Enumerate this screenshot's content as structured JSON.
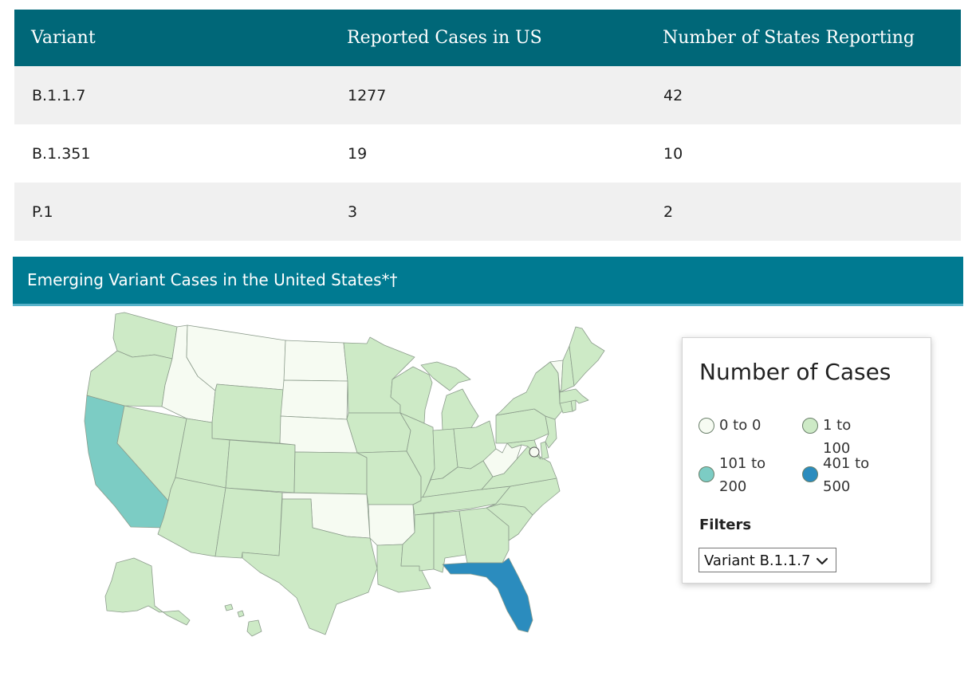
{
  "table": {
    "headers": [
      "Variant",
      "Reported Cases in US",
      "Number of States Reporting"
    ],
    "rows": [
      [
        "B.1.1.7",
        "1277",
        "42"
      ],
      [
        "B.1.351",
        "19",
        "10"
      ],
      [
        "P.1",
        "3",
        "2"
      ]
    ]
  },
  "map_section": {
    "title": "Emerging Variant Cases in the United States*†"
  },
  "legend": {
    "title": "Number of Cases",
    "items": [
      {
        "label": "0 to 0",
        "color": "#f6fbf2"
      },
      {
        "label": "1 to 100",
        "color": "#cdeac6"
      },
      {
        "label": "101 to 200",
        "color": "#7cccc4"
      },
      {
        "label": "401 to 500",
        "color": "#2b8cbe"
      }
    ]
  },
  "filters": {
    "title": "Filters",
    "selected": "Variant B.1.1.7",
    "icon": "chevron-down-icon"
  },
  "map": {
    "colors": {
      "none": "#f6fbf2",
      "low": "#cdeac6",
      "mid": "#7cccc4",
      "high": "#2b8cbe",
      "stroke": "#8c9c8c"
    },
    "state_levels": {
      "california": "101 to 200",
      "florida": "401 to 500",
      "montana": "0 to 0",
      "idaho": "0 to 0",
      "north-dakota": "0 to 0",
      "south-dakota": "0 to 0",
      "nebraska": "0 to 0",
      "oklahoma": "0 to 0",
      "arkansas": "0 to 0",
      "west-virginia": "0 to 0",
      "vermont": "0 to 0",
      "district-of-columbia": "0 to 0"
    }
  }
}
